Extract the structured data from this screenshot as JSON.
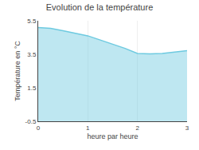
{
  "chart_data": {
    "type": "area",
    "title": "Evolution de la température",
    "xlabel": "heure par heure",
    "ylabel": "Température en °C",
    "x": [
      0,
      0.25,
      0.5,
      0.75,
      1.0,
      1.25,
      1.5,
      1.75,
      2.0,
      2.25,
      2.5,
      2.75,
      3.0
    ],
    "values": [
      5.1,
      5.05,
      4.9,
      4.75,
      4.6,
      4.35,
      4.1,
      3.85,
      3.55,
      3.52,
      3.55,
      3.62,
      3.72
    ],
    "color": "#6ecae0",
    "xlim": [
      0,
      3
    ],
    "ylim": [
      -0.5,
      5.5
    ],
    "xticks": [
      0,
      1,
      2,
      3
    ],
    "yticks": [
      -0.5,
      1.5,
      3.5,
      5.5
    ],
    "grid": "x"
  }
}
